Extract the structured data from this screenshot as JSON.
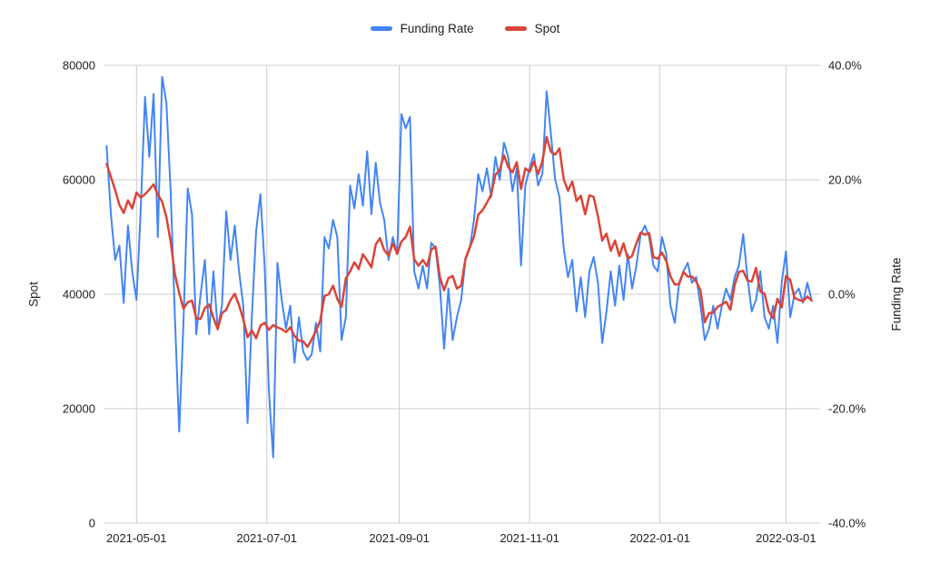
{
  "chart_data": {
    "type": "line",
    "title": "",
    "legend_position": "top-center",
    "grid": true,
    "background_color": "#ffffff",
    "gridline_color": "#cccccc",
    "x_domain": [
      "2021-04-16",
      "2022-03-17"
    ],
    "x_ticks": [
      "2021-05-01",
      "2021-07-01",
      "2021-09-01",
      "2021-11-01",
      "2022-01-01",
      "2022-03-01"
    ],
    "left_axis": {
      "title": "Spot",
      "min": 0,
      "max": 80000,
      "ticks": [
        0,
        20000,
        40000,
        60000,
        80000
      ]
    },
    "right_axis": {
      "title": "Funding Rate",
      "min": -40,
      "max": 40,
      "ticks": [
        -40,
        -20,
        0,
        20,
        40
      ],
      "tick_format": "percent_1dp"
    },
    "x": [
      "2021-04-17",
      "2021-04-19",
      "2021-04-21",
      "2021-04-23",
      "2021-04-25",
      "2021-04-27",
      "2021-04-29",
      "2021-05-01",
      "2021-05-03",
      "2021-05-05",
      "2021-05-07",
      "2021-05-09",
      "2021-05-11",
      "2021-05-13",
      "2021-05-15",
      "2021-05-17",
      "2021-05-19",
      "2021-05-21",
      "2021-05-23",
      "2021-05-25",
      "2021-05-27",
      "2021-05-29",
      "2021-05-31",
      "2021-06-02",
      "2021-06-04",
      "2021-06-06",
      "2021-06-08",
      "2021-06-10",
      "2021-06-12",
      "2021-06-14",
      "2021-06-16",
      "2021-06-18",
      "2021-06-20",
      "2021-06-22",
      "2021-06-24",
      "2021-06-26",
      "2021-06-28",
      "2021-06-30",
      "2021-07-02",
      "2021-07-04",
      "2021-07-06",
      "2021-07-08",
      "2021-07-10",
      "2021-07-12",
      "2021-07-14",
      "2021-07-16",
      "2021-07-18",
      "2021-07-20",
      "2021-07-22",
      "2021-07-24",
      "2021-07-26",
      "2021-07-28",
      "2021-07-30",
      "2021-08-01",
      "2021-08-03",
      "2021-08-05",
      "2021-08-07",
      "2021-08-09",
      "2021-08-11",
      "2021-08-13",
      "2021-08-15",
      "2021-08-17",
      "2021-08-19",
      "2021-08-21",
      "2021-08-23",
      "2021-08-25",
      "2021-08-27",
      "2021-08-29",
      "2021-08-31",
      "2021-09-02",
      "2021-09-04",
      "2021-09-06",
      "2021-09-08",
      "2021-09-10",
      "2021-09-12",
      "2021-09-14",
      "2021-09-16",
      "2021-09-18",
      "2021-09-20",
      "2021-09-22",
      "2021-09-24",
      "2021-09-26",
      "2021-09-28",
      "2021-09-30",
      "2021-10-02",
      "2021-10-04",
      "2021-10-06",
      "2021-10-08",
      "2021-10-10",
      "2021-10-12",
      "2021-10-14",
      "2021-10-16",
      "2021-10-18",
      "2021-10-20",
      "2021-10-22",
      "2021-10-24",
      "2021-10-26",
      "2021-10-28",
      "2021-10-30",
      "2021-11-01",
      "2021-11-03",
      "2021-11-05",
      "2021-11-07",
      "2021-11-09",
      "2021-11-11",
      "2021-11-13",
      "2021-11-15",
      "2021-11-17",
      "2021-11-19",
      "2021-11-21",
      "2021-11-23",
      "2021-11-25",
      "2021-11-27",
      "2021-11-29",
      "2021-12-01",
      "2021-12-03",
      "2021-12-05",
      "2021-12-07",
      "2021-12-09",
      "2021-12-11",
      "2021-12-13",
      "2021-12-15",
      "2021-12-17",
      "2021-12-19",
      "2021-12-21",
      "2021-12-23",
      "2021-12-25",
      "2021-12-27",
      "2021-12-29",
      "2021-12-31",
      "2022-01-02",
      "2022-01-04",
      "2022-01-06",
      "2022-01-08",
      "2022-01-10",
      "2022-01-12",
      "2022-01-14",
      "2022-01-16",
      "2022-01-18",
      "2022-01-20",
      "2022-01-22",
      "2022-01-24",
      "2022-01-26",
      "2022-01-28",
      "2022-01-30",
      "2022-02-01",
      "2022-02-03",
      "2022-02-05",
      "2022-02-07",
      "2022-02-09",
      "2022-02-11",
      "2022-02-13",
      "2022-02-15",
      "2022-02-17",
      "2022-02-19",
      "2022-02-21",
      "2022-02-23",
      "2022-02-25",
      "2022-02-27",
      "2022-03-01",
      "2022-03-03",
      "2022-03-05",
      "2022-03-07",
      "2022-03-09",
      "2022-03-11",
      "2022-03-13"
    ],
    "series": [
      {
        "name": "Funding Rate",
        "color": "#4285F4",
        "axis": "right",
        "unit": "%",
        "stroke_width": 2,
        "values": [
          25.9,
          14,
          6,
          8.5,
          -1.5,
          12,
          4,
          -1,
          15,
          34.5,
          24,
          35,
          10,
          38,
          33.5,
          18,
          -4,
          -24,
          -5,
          18.5,
          14,
          -7,
          0,
          6,
          -7,
          4,
          -6,
          -2,
          14.5,
          6,
          12,
          4,
          -2,
          -22.5,
          -4,
          11,
          17.5,
          5,
          -17,
          -28.5,
          5.5,
          -1,
          -6,
          -2,
          -12,
          -4,
          -10,
          -11.5,
          -10.5,
          -5,
          -10,
          10,
          8,
          13,
          10,
          -8,
          -4,
          19,
          15,
          21,
          15.5,
          25,
          14,
          23,
          16,
          13,
          6,
          10,
          7,
          31.5,
          29,
          31,
          4,
          1,
          5,
          1,
          9,
          8,
          1.5,
          -9.5,
          1,
          -8,
          -4,
          -1,
          6,
          8,
          13,
          21,
          18,
          22,
          17,
          24,
          20,
          26.5,
          24,
          18,
          22,
          5,
          19,
          22,
          24.5,
          19,
          21,
          35.5,
          28,
          20,
          17,
          8,
          3,
          6,
          -3,
          3,
          -4,
          4,
          6.5,
          2,
          -8.5,
          -3,
          4,
          -2,
          5,
          -1,
          7,
          1,
          5,
          10.5,
          12,
          10,
          5,
          4,
          10,
          7,
          -2,
          -5,
          2,
          4,
          5.5,
          2,
          3,
          -2,
          -8,
          -6,
          -2,
          -6,
          -2,
          1,
          -1,
          3,
          5,
          10.5,
          3,
          -3,
          -1,
          4,
          -4,
          -6,
          -2,
          -8.5,
          2,
          7.5,
          -4,
          0,
          1,
          -1.5,
          2,
          -1
        ]
      },
      {
        "name": "Spot",
        "color": "#DB4437",
        "axis": "left",
        "unit": "",
        "stroke_width": 2.5,
        "values": [
          62800,
          60500,
          58200,
          55600,
          54200,
          56400,
          55000,
          57800,
          56900,
          57500,
          58300,
          59200,
          57400,
          56200,
          53500,
          49200,
          43500,
          40200,
          37500,
          38600,
          38900,
          35800,
          35700,
          37600,
          38200,
          35900,
          33900,
          36700,
          37300,
          39000,
          40100,
          38100,
          35600,
          32500,
          33700,
          32300,
          34500,
          35000,
          33800,
          34600,
          34200,
          33900,
          33400,
          34200,
          32700,
          31900,
          31800,
          30800,
          32100,
          33600,
          35400,
          39700,
          40000,
          41500,
          39200,
          37800,
          42800,
          44000,
          45600,
          44400,
          47000,
          45900,
          44700,
          48700,
          49800,
          47700,
          46800,
          48900,
          47100,
          49200,
          50000,
          51800,
          46100,
          45000,
          46000,
          44900,
          47800,
          48300,
          43000,
          40700,
          42800,
          43200,
          41000,
          41500,
          46200,
          48200,
          50100,
          53900,
          54700,
          56000,
          57400,
          60900,
          61700,
          64300,
          62250,
          61300,
          63100,
          58400,
          62000,
          61400,
          63200,
          61000,
          63300,
          67500,
          64900,
          64400,
          65500,
          60100,
          58100,
          59700,
          56300,
          57200,
          54000,
          57300,
          57000,
          53600,
          49400,
          50600,
          47600,
          49400,
          46700,
          48900,
          46200,
          46700,
          48900,
          50800,
          50400,
          50700,
          46500,
          46200,
          47300,
          45800,
          43100,
          41700,
          41800,
          43900,
          43100,
          43100,
          42200,
          40700,
          35100,
          36700,
          36800,
          37800,
          38200,
          38700,
          37300,
          41600,
          43900,
          44100,
          42400,
          42200,
          44600,
          40500,
          40100,
          37000,
          35800,
          39200,
          37700,
          43200,
          42500,
          39400,
          39000,
          38800,
          39600,
          38900
        ]
      }
    ]
  }
}
